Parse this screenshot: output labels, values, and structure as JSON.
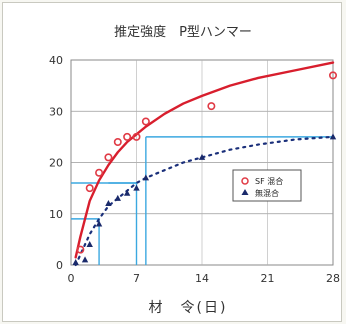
{
  "chart_data": {
    "type": "scatter",
    "title": "推定強度　P型ハンマー",
    "xlabel": "材　令(日)",
    "ylabel": "",
    "xlim": [
      0,
      28
    ],
    "ylim": [
      0,
      40
    ],
    "xticks": [
      0,
      7,
      14,
      21,
      28
    ],
    "yticks": [
      0,
      10,
      20,
      30,
      40
    ],
    "legend_position": "right",
    "series": [
      {
        "name": "SF 混合",
        "marker": "circle",
        "color": "#e03a45",
        "x": [
          1,
          2,
          3,
          4,
          5,
          6,
          7,
          8,
          15,
          28
        ],
        "y": [
          3,
          15,
          18,
          21,
          24,
          25,
          25,
          28,
          31,
          37
        ],
        "trend": {
          "color": "#d81e2d",
          "style": "solid",
          "x": [
            0.5,
            1,
            2,
            3,
            4,
            5,
            6,
            7,
            8,
            10,
            12,
            14,
            17,
            20,
            24,
            28
          ],
          "y": [
            1.5,
            5.5,
            12.5,
            16.5,
            19.5,
            22,
            24,
            25.5,
            27,
            29.5,
            31.5,
            33,
            35,
            36.5,
            38,
            39.5
          ]
        }
      },
      {
        "name": "無混合",
        "marker": "triangle",
        "color": "#1a2a6b",
        "x": [
          0.5,
          1.5,
          2,
          3,
          4,
          5,
          6,
          7,
          8,
          14,
          28
        ],
        "y": [
          0.5,
          1,
          4,
          8,
          12,
          13,
          14,
          15,
          17,
          21,
          25
        ],
        "trend": {
          "color": "#1a2f7a",
          "style": "dotted",
          "x": [
            0.5,
            1,
            2,
            3,
            4,
            5,
            6,
            7,
            8,
            10,
            12,
            14,
            17,
            20,
            24,
            28
          ],
          "y": [
            0,
            2,
            6,
            9,
            11.5,
            13,
            14.5,
            16,
            17,
            18.5,
            20,
            21,
            22.5,
            23.5,
            24.5,
            25
          ]
        }
      }
    ],
    "guides": [
      {
        "color": "#3ba8e0",
        "points": [
          [
            3,
            0
          ],
          [
            3,
            9
          ],
          [
            0,
            9
          ]
        ]
      },
      {
        "color": "#3ba8e0",
        "points": [
          [
            7,
            0
          ],
          [
            7,
            16
          ],
          [
            0,
            16
          ]
        ]
      },
      {
        "color": "#3ba8e0",
        "points": [
          [
            7,
            16
          ],
          [
            4,
            16
          ]
        ]
      },
      {
        "color": "#3ba8e0",
        "points": [
          [
            8,
            25
          ],
          [
            28,
            25
          ]
        ]
      },
      {
        "color": "#3ba8e0",
        "points": [
          [
            8,
            25
          ],
          [
            8,
            0
          ]
        ]
      }
    ]
  }
}
